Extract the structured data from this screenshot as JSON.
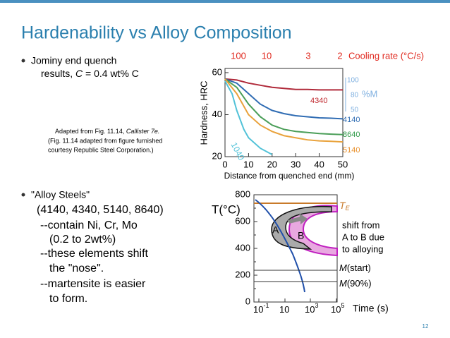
{
  "title": "Hardenability vs Alloy Composition",
  "bullet1": [
    "Jominy end quench",
    "results, ",
    "C",
    " = 0.4 wt% C"
  ],
  "caption": [
    "Adapted from Fig. 11.14, ",
    "Callister 7e.",
    "(Fig. 11.14 adapted from figure furnished",
    "courtesy Republic Steel Corporation.)"
  ],
  "jominy": {
    "type": "line",
    "ylabel": "Hardness, HRC",
    "xlabel": "Distance from quenched end (mm)",
    "xlim": [
      0,
      50
    ],
    "xticks": [
      0,
      10,
      20,
      30,
      40,
      50
    ],
    "ylim": [
      20,
      62
    ],
    "yticks": [
      20,
      40,
      60
    ],
    "cooling_rate_label": "Cooling rate (°C/s)",
    "cooling_rates": [
      "100",
      "10",
      "3",
      "2"
    ],
    "martensite_label": "%M",
    "martensite_ticks": [
      "100",
      "80",
      "50"
    ],
    "series": [
      {
        "name": "4340",
        "color": "#b02a3a",
        "x": [
          0,
          5,
          10,
          15,
          20,
          25,
          30,
          35,
          40,
          45,
          50
        ],
        "values": [
          57,
          56.5,
          55,
          54,
          53,
          52.5,
          52,
          52,
          51.8,
          51.8,
          51.8
        ]
      },
      {
        "name": "4140",
        "color": "#2f6cb3",
        "x": [
          0,
          5,
          10,
          15,
          20,
          25,
          30,
          35,
          40,
          45,
          50
        ],
        "values": [
          57,
          55,
          50,
          45,
          42,
          40.5,
          39.5,
          39,
          38.5,
          38.3,
          38
        ]
      },
      {
        "name": "8640",
        "color": "#4a9e58",
        "x": [
          0,
          5,
          10,
          15,
          20,
          25,
          30,
          35,
          40,
          45,
          50
        ],
        "values": [
          57,
          53,
          45,
          39,
          35,
          33,
          32,
          31.5,
          31,
          30.7,
          30.5
        ]
      },
      {
        "name": "5140",
        "color": "#e9a23b",
        "x": [
          0,
          5,
          10,
          15,
          20,
          25,
          30,
          35,
          40,
          45,
          50
        ],
        "values": [
          57,
          50,
          40,
          35,
          32,
          30,
          29,
          28,
          27.5,
          27.3,
          27
        ]
      },
      {
        "name": "1040",
        "color": "#52c2d8",
        "x": [
          0,
          3,
          5,
          8,
          10,
          15,
          20
        ],
        "values": [
          56,
          50,
          42,
          33,
          29,
          24,
          21
        ]
      }
    ]
  },
  "bullet2": [
    "\"Alloy Steels\"",
    "(4140, 4340, 5140, 8640)",
    "--contain Ni, Cr, Mo",
    "(0.2 to 2wt%)",
    "--these elements shift",
    "the \"nose\".",
    "--martensite is easier",
    "to form."
  ],
  "ttt": {
    "ylabel": "T(°C)",
    "ylim": [
      0,
      800
    ],
    "yticks": [
      0,
      200,
      400,
      600,
      800
    ],
    "xticks": [
      {
        "base": "10",
        "exp": "-1"
      },
      {
        "base": "10",
        "exp": ""
      },
      {
        "base": "10",
        "exp": "3"
      },
      {
        "base": "10",
        "exp": "5"
      }
    ],
    "xlabel": "Time (s)",
    "te": {
      "main": "T",
      "sub": "E"
    },
    "region_a": "A",
    "region_b": "B",
    "note": [
      "shift from",
      "A to B due",
      "to alloying"
    ],
    "mstart": {
      "m": "M",
      "rest": "(start)"
    },
    "m90": {
      "m": "M",
      "rest": "(90%)"
    }
  },
  "page_number": "12"
}
